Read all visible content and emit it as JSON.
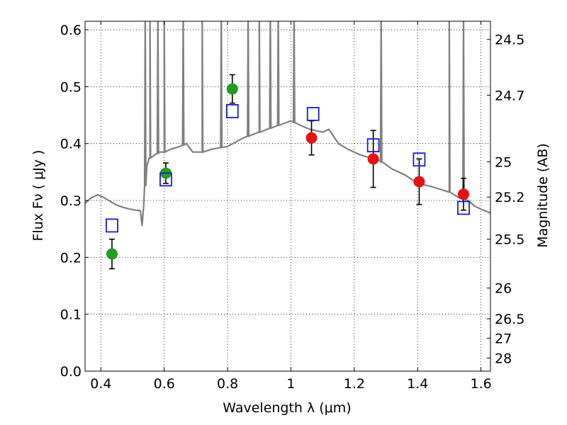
{
  "chart_data": {
    "type": "scatter",
    "xlabel": "Wavelength  λ (μm)",
    "ylabel": "Flux  Fν  ( μJy )",
    "ylabel_right": "Magnitude (AB)",
    "xlim": [
      0.35,
      1.63
    ],
    "ylim": [
      0.0,
      0.615
    ],
    "grid": true,
    "x_ticks": [
      0.4,
      0.6,
      0.8,
      1.0,
      1.2,
      1.4,
      1.6
    ],
    "x_tick_labels": [
      "0.4",
      "0.6",
      "0.8",
      "1",
      "1.2",
      "1.4",
      "1.6"
    ],
    "y_ticks": [
      0.0,
      0.1,
      0.2,
      0.3,
      0.4,
      0.5,
      0.6
    ],
    "y_tick_labels": [
      "0.0",
      "0.1",
      "0.2",
      "0.3",
      "0.4",
      "0.5",
      "0.6"
    ],
    "right_ticks": [
      {
        "label": "24.5",
        "flux": 0.583
      },
      {
        "label": "24.7",
        "flux": 0.485
      },
      {
        "label": "25",
        "flux": 0.368
      },
      {
        "label": "25.2",
        "flux": 0.306
      },
      {
        "label": "25.5",
        "flux": 0.232
      },
      {
        "label": "26",
        "flux": 0.146
      },
      {
        "label": "26.5",
        "flux": 0.092
      },
      {
        "label": "27",
        "flux": 0.058
      },
      {
        "label": "28",
        "flux": 0.023
      }
    ],
    "series": [
      {
        "color": "#808080",
        "line": [
          [
            0.35,
            0.295
          ],
          [
            0.37,
            0.305
          ],
          [
            0.39,
            0.31
          ],
          [
            0.41,
            0.305
          ],
          [
            0.43,
            0.298
          ],
          [
            0.45,
            0.292
          ],
          [
            0.47,
            0.288
          ],
          [
            0.49,
            0.285
          ],
          [
            0.51,
            0.283
          ],
          [
            0.525,
            0.282
          ],
          [
            0.53,
            0.255
          ],
          [
            0.535,
            0.29
          ],
          [
            0.545,
            0.36
          ],
          [
            0.555,
            0.375
          ],
          [
            0.57,
            0.38
          ],
          [
            0.585,
            0.385
          ],
          [
            0.6,
            0.385
          ],
          [
            0.62,
            0.39
          ],
          [
            0.65,
            0.395
          ],
          [
            0.67,
            0.4
          ],
          [
            0.69,
            0.385
          ],
          [
            0.72,
            0.385
          ],
          [
            0.75,
            0.39
          ],
          [
            0.8,
            0.395
          ],
          [
            0.85,
            0.41
          ],
          [
            0.9,
            0.42
          ],
          [
            0.95,
            0.43
          ],
          [
            1.0,
            0.44
          ],
          [
            1.03,
            0.432
          ],
          [
            1.06,
            0.425
          ],
          [
            1.1,
            0.42
          ],
          [
            1.12,
            0.425
          ],
          [
            1.15,
            0.4
          ],
          [
            1.18,
            0.39
          ],
          [
            1.22,
            0.38
          ],
          [
            1.25,
            0.375
          ],
          [
            1.28,
            0.37
          ],
          [
            1.32,
            0.355
          ],
          [
            1.36,
            0.345
          ],
          [
            1.4,
            0.33
          ],
          [
            1.44,
            0.325
          ],
          [
            1.47,
            0.32
          ],
          [
            1.5,
            0.315
          ],
          [
            1.53,
            0.305
          ],
          [
            1.56,
            0.3
          ],
          [
            1.58,
            0.29
          ],
          [
            1.6,
            0.285
          ],
          [
            1.63,
            0.278
          ]
        ],
        "spikes": [
          0.54,
          0.555,
          0.58,
          0.6,
          0.66,
          0.72,
          0.78,
          0.865,
          0.9,
          0.935,
          0.96,
          1.01,
          1.285,
          1.5,
          1.545
        ]
      },
      {
        "color": "#1f9e1f",
        "marker": "circle",
        "points": [
          {
            "x": 0.435,
            "y": 0.206,
            "err": 0.026
          },
          {
            "x": 0.605,
            "y": 0.348,
            "err": 0.018
          },
          {
            "x": 0.815,
            "y": 0.496,
            "err": 0.025
          }
        ]
      },
      {
        "color": "#e81212",
        "marker": "circle",
        "points": [
          {
            "x": 1.065,
            "y": 0.41,
            "err": 0.03
          },
          {
            "x": 1.26,
            "y": 0.373,
            "err": 0.05
          },
          {
            "x": 1.405,
            "y": 0.333,
            "err": 0.04
          },
          {
            "x": 1.545,
            "y": 0.311,
            "err": 0.028
          }
        ]
      },
      {
        "color": "#1a1ad6",
        "marker": "open-square",
        "points": [
          {
            "x": 0.435,
            "y": 0.256
          },
          {
            "x": 0.605,
            "y": 0.337
          },
          {
            "x": 0.815,
            "y": 0.457
          },
          {
            "x": 1.07,
            "y": 0.452
          },
          {
            "x": 1.26,
            "y": 0.397
          },
          {
            "x": 1.405,
            "y": 0.372
          },
          {
            "x": 1.545,
            "y": 0.287
          }
        ]
      }
    ]
  }
}
